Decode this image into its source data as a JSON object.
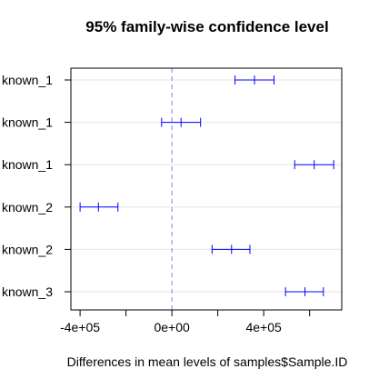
{
  "chart_data": {
    "type": "interval",
    "title": "95% family-wise confidence level",
    "xlabel": "Differences in mean levels of samples$Sample.ID",
    "ylabel": "",
    "xlim": [
      -440000,
      740000
    ],
    "xticks": [
      -400000,
      -200000,
      0,
      200000,
      400000,
      600000
    ],
    "xtick_labels": [
      "-4e+05",
      "",
      "0e+00",
      "",
      "4e+05",
      ""
    ],
    "reference_line": 0,
    "grid": "horizontal",
    "color": "#0000ff",
    "categories": [
      "known_1",
      "known_1",
      "known_1",
      "known_2",
      "known_2",
      "known_3"
    ],
    "estimates": [
      360000,
      40000,
      620000,
      -320000,
      260000,
      580000
    ],
    "lower": [
      275000,
      -45000,
      535000,
      -400000,
      175000,
      495000
    ],
    "upper": [
      445000,
      125000,
      705000,
      -235000,
      340000,
      660000
    ]
  }
}
